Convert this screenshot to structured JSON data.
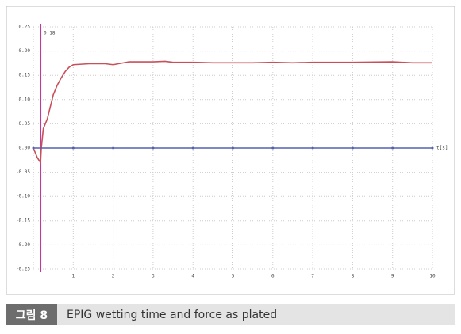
{
  "chart_data": {
    "type": "line",
    "x_label": "t[s]",
    "xlim": [
      0,
      10
    ],
    "xticks": [
      1,
      2,
      3,
      4,
      5,
      6,
      7,
      8,
      9,
      10
    ],
    "ylim": [
      -0.25,
      0.25
    ],
    "yticks": [
      0.25,
      {
        "value": 0.2,
        "label": "0.20"
      },
      0.15,
      {
        "value": 0.1,
        "label": "0.10"
      },
      0.05,
      {
        "value": 0,
        "label": "0.00"
      },
      -0.05,
      {
        "value": -0.1,
        "label": "-0.10"
      },
      -0.15,
      {
        "value": -0.2,
        "label": "-0.20"
      },
      -0.25
    ],
    "grid": true,
    "marker_line": 0.18,
    "marker_color": "#c0399a",
    "series": [
      {
        "color": "#c8505a",
        "x": [
          0,
          0.1,
          0.18,
          0.2,
          0.25,
          0.35,
          0.5,
          0.6,
          0.7,
          0.8,
          0.9,
          1.0,
          1.2,
          1.4,
          1.8,
          2.0,
          2.2,
          2.4,
          3.0,
          3.3,
          3.5,
          4.0,
          4.5,
          5.0,
          5.5,
          6.0,
          6.5,
          7.0,
          8.0,
          9.0,
          9.5,
          10.0
        ],
        "values": [
          0,
          -0.02,
          -0.03,
          0,
          0.04,
          0.06,
          0.11,
          0.13,
          0.145,
          0.158,
          0.167,
          0.172,
          0.173,
          0.174,
          0.174,
          0.172,
          0.175,
          0.178,
          0.178,
          0.179,
          0.177,
          0.177,
          0.176,
          0.176,
          0.176,
          0.177,
          0.176,
          0.177,
          0.177,
          0.178,
          0.176,
          0.176
        ]
      },
      {
        "color": "#5560b0",
        "dots": true,
        "x": [
          0,
          1,
          2,
          3,
          4,
          5,
          6,
          7,
          8,
          9,
          10
        ],
        "values": [
          0,
          0,
          0,
          0,
          0,
          0,
          0,
          0,
          0,
          0,
          0
        ]
      }
    ]
  },
  "caption": {
    "label": "그림 8",
    "text": "EPIG wetting time and force as plated"
  }
}
